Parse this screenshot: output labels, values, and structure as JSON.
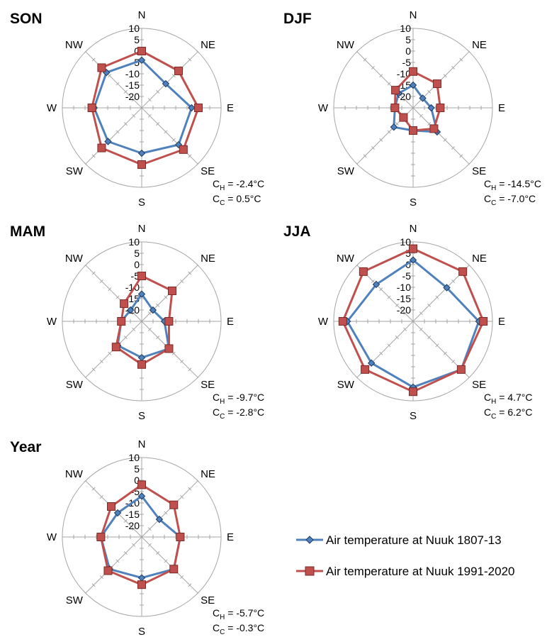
{
  "chart_data": [
    {
      "type": "radar",
      "title": "SON",
      "directions": [
        "N",
        "NE",
        "E",
        "SE",
        "S",
        "SW",
        "W",
        "NW"
      ],
      "ticks": [
        "10",
        "5",
        "0",
        "-5",
        "-10",
        "-15",
        "-20"
      ],
      "rlim": [
        -25,
        10
      ],
      "series": [
        {
          "values": [
            -4,
            -10,
            -3,
            -2,
            -5,
            -4,
            -4,
            -3
          ]
        },
        {
          "values": [
            0,
            -2,
            0,
            1,
            0,
            0,
            -3,
            0
          ]
        }
      ],
      "stats": [
        {
          "sub": "H",
          "text": " = -2.4°C"
        },
        {
          "sub": "C",
          "text": " = 0.5°C"
        }
      ]
    },
    {
      "type": "radar",
      "title": "DJF",
      "directions": [
        "N",
        "NE",
        "E",
        "SE",
        "S",
        "SW",
        "W",
        "NW"
      ],
      "ticks": [
        "10",
        "5",
        "0",
        "-5",
        "-10",
        "-15",
        "-20"
      ],
      "rlim": [
        -25,
        10
      ],
      "series": [
        {
          "values": [
            -15,
            -19,
            -17,
            -10,
            -15,
            -13,
            -17,
            -16
          ]
        },
        {
          "values": [
            -9,
            -10,
            -13,
            -12,
            -15,
            -19,
            -17,
            -14
          ]
        }
      ],
      "stats": [
        {
          "sub": "H",
          "text": " = -14.5°C"
        },
        {
          "sub": "C",
          "text": " = -7.0°C"
        }
      ]
    },
    {
      "type": "radar",
      "title": "MAM",
      "directions": [
        "N",
        "NE",
        "E",
        "SE",
        "S",
        "SW",
        "W",
        "NW"
      ],
      "ticks": [
        "10",
        "5",
        "0",
        "-5",
        "-10",
        "-15",
        "-20"
      ],
      "rlim": [
        -25,
        10
      ],
      "series": [
        {
          "values": [
            -13,
            -18,
            -15,
            -8,
            -9,
            -10,
            -16,
            -18
          ]
        },
        {
          "values": [
            -5,
            -6,
            -13,
            -8,
            -6,
            -9,
            -16,
            -14
          ]
        }
      ],
      "stats": [
        {
          "sub": "H",
          "text": " = -9.7°C"
        },
        {
          "sub": "C",
          "text": " = -2.8°C"
        }
      ]
    },
    {
      "type": "radar",
      "title": "JJA",
      "directions": [
        "N",
        "NE",
        "E",
        "SE",
        "S",
        "SW",
        "W",
        "NW"
      ],
      "ticks": [
        "10",
        "5",
        "0",
        "-5",
        "-10",
        "-15",
        "-20"
      ],
      "rlim": [
        -25,
        10
      ],
      "series": [
        {
          "values": [
            2,
            -4,
            4,
            5,
            4,
            1,
            4,
            -2
          ]
        },
        {
          "values": [
            7,
            6,
            6,
            5,
            6,
            5,
            6,
            6
          ]
        }
      ],
      "stats": [
        {
          "sub": "H",
          "text": " = 4.7°C"
        },
        {
          "sub": "C",
          "text": " = 6.2°C"
        }
      ]
    },
    {
      "type": "radar",
      "title": "Year",
      "directions": [
        "N",
        "NE",
        "E",
        "SE",
        "S",
        "SW",
        "W",
        "NW"
      ],
      "ticks": [
        "10",
        "5",
        "0",
        "-5",
        "-10",
        "-15",
        "-20"
      ],
      "rlim": [
        -25,
        10
      ],
      "series": [
        {
          "values": [
            -7,
            -14,
            -8,
            -5,
            -7,
            -5,
            -7,
            -10
          ]
        },
        {
          "values": [
            -2,
            -5,
            -8,
            -5,
            -4,
            -4,
            -7,
            -6
          ]
        }
      ],
      "stats": [
        {
          "sub": "H",
          "text": " = -5.7°C"
        },
        {
          "sub": "C",
          "text": " = -0.3°C"
        }
      ]
    }
  ],
  "legend": [
    {
      "label": "Air temperature at Nuuk 1807-13",
      "color": "#4f81bd",
      "marker": "diamond"
    },
    {
      "label": "Air temperature at Nuuk 1991-2020",
      "color": "#c0504d",
      "marker": "square"
    }
  ],
  "stat_symbol": "C",
  "series_colors": {
    "line1": "#4f81bd",
    "line2": "#c0504d",
    "marker1_fill": "#4f81bd",
    "marker2_fill": "#c0504d"
  }
}
